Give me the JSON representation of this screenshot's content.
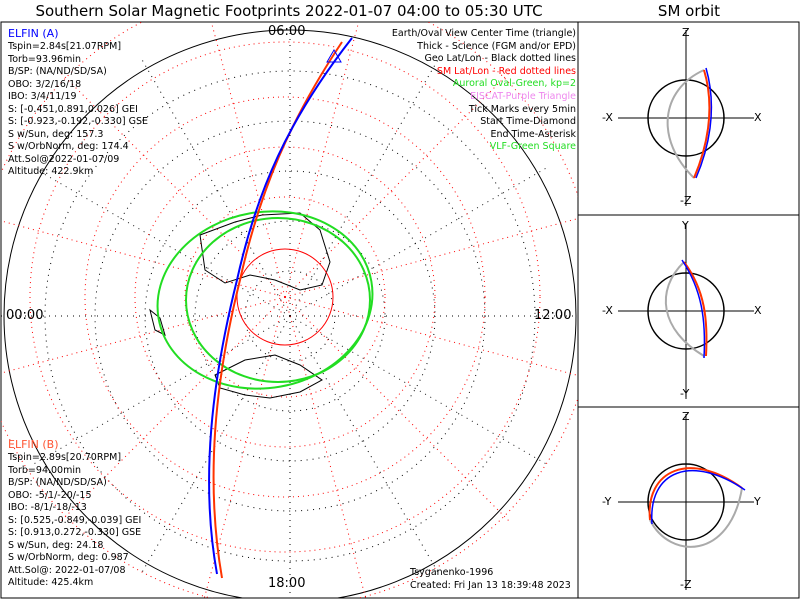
{
  "title": "Southern Solar Magnetic Footprints 2022-01-07 04:00 to 05:30 UTC",
  "sm_orbit_title": "SM orbit",
  "colors": {
    "probe_a": "#0000ff",
    "probe_b": "#ff3300",
    "sm_grid": "#ff0000",
    "oval": "#22dd22",
    "eiscat": "#ee88ee",
    "vlf": "#22dd22"
  },
  "probe_a": {
    "name": "ELFIN (A)",
    "lines": [
      "Tspin=2.84s[21.07RPM]",
      "Torb=93.96min",
      "B/SP: (NA/ND/SD/SA)",
      "OBO: 3/2/16/18",
      "IBO: 3/4/11/19",
      "S: [-0.451,0.891,0.026] GEI",
      "S: [-0.923,-0.192,-0.330] GSE",
      "S w/Sun, deg: 157.3",
      "S w/OrbNorm, deg: 174.4",
      "Att.Sol@2022-01-07/09",
      "Altitude: 422.9km"
    ]
  },
  "probe_b": {
    "name": "ELFIN (B)",
    "lines": [
      "Tspin=2.89s[20.70RPM]",
      "Torb=94.00min",
      "B/SP: (NA/ND/SD/SA)",
      "OBO: -5/1/-20/-15",
      "IBO: -8/1/-18/-13",
      "S: [0.525,-0.849,-0.039] GEI",
      "S: [0.913,0.272,-0.330] GSE",
      "S w/Sun, deg: 24.18",
      "S w/OrbNorm, deg: 0.987",
      "Att.Sol@: 2022-01-07/08",
      "Altitude: 425.4km"
    ]
  },
  "legend": [
    {
      "text": "Earth/Oval View Center Time (triangle)",
      "color": "#000000"
    },
    {
      "text": "Thick - Science (FGM and/or EPD)",
      "color": "#000000"
    },
    {
      "text": "Geo Lat/Lon - Black dotted lines",
      "color": "#000000"
    },
    {
      "text": "SM Lat/Lon - Red dotted lines",
      "color": "#ff0000"
    },
    {
      "text": "Auroral Oval-Green, kp=2",
      "color": "#22dd22"
    },
    {
      "text": "EISCAT-Purple Triangle",
      "color": "#ee88ee"
    },
    {
      "text": "Tick Marks every 5min",
      "color": "#000000"
    },
    {
      "text": "Start Time-Diamond",
      "color": "#000000"
    },
    {
      "text": "End Time-Asterisk",
      "color": "#000000"
    },
    {
      "text": "VLF-Green Square",
      "color": "#22dd22"
    }
  ],
  "mlt_labels": {
    "top": "06:00",
    "left": "00:00",
    "right": "12:00",
    "bottom": "18:00"
  },
  "model": "Tsyganenko-1996",
  "created": "Created: Fri Jan 13 18:39:48 2023",
  "sm_panels": [
    {
      "top": "Z",
      "left": "-X",
      "right": "X",
      "bottom": "-Z"
    },
    {
      "top": "Y",
      "left": "-X",
      "right": "X",
      "bottom": "-Y"
    },
    {
      "top": "Z",
      "left": "-Y",
      "right": "Y",
      "bottom": "-Z"
    }
  ]
}
